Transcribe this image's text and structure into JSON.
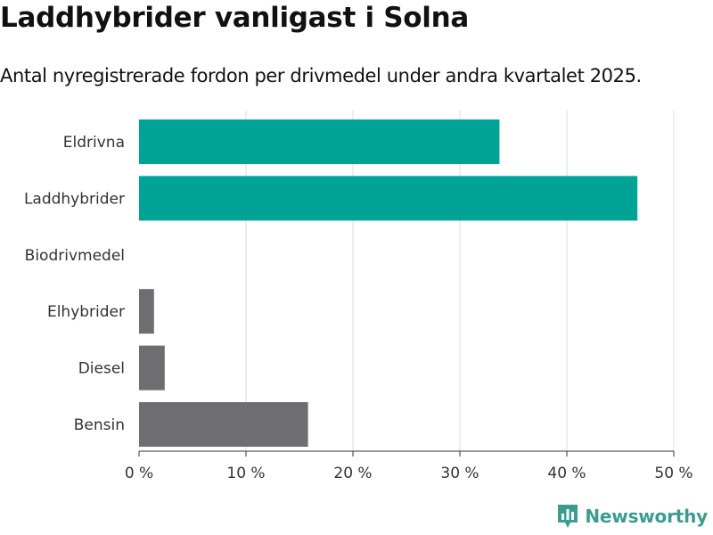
{
  "title": "Laddhybrider vanligast i Solna",
  "subtitle": "Antal nyregistrerade fordon per drivmedel under andra kvartalet 2025.",
  "brand": {
    "name": "Newsworthy",
    "icon": "newsworthy-logo-icon"
  },
  "colors": {
    "highlight": "#00a396",
    "default": "#6e6d72",
    "grid": "#dddddd",
    "axis": "#333333",
    "brand": "#3a9d8f"
  },
  "chart_data": {
    "type": "bar",
    "orientation": "horizontal",
    "categories": [
      "Eldrivna",
      "Laddhybrider",
      "Biodrivmedel",
      "Elhybrider",
      "Diesel",
      "Bensin"
    ],
    "values": [
      33.7,
      46.6,
      0,
      1.4,
      2.4,
      15.8
    ],
    "highlighted": [
      true,
      true,
      false,
      false,
      false,
      false
    ],
    "xlim": [
      0,
      50
    ],
    "xticks": [
      0,
      10,
      20,
      30,
      40,
      50
    ],
    "xtick_labels": [
      "0 %",
      "10 %",
      "20 %",
      "30 %",
      "40 %",
      "50 %"
    ],
    "grid": true,
    "xlabel": "",
    "ylabel": ""
  }
}
